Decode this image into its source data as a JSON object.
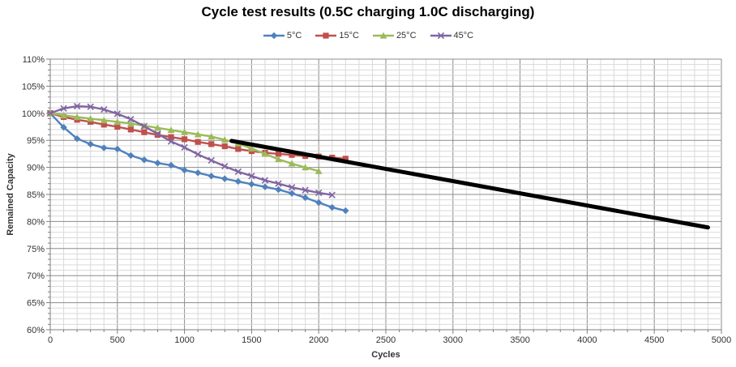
{
  "title": "Cycle test results (0.5C charging 1.0C discharging)",
  "chart_data": {
    "type": "line",
    "title": "Cycle test results (0.5C charging 1.0C discharging)",
    "xlabel": "Cycles",
    "ylabel": "Remained Capacity",
    "xlim": [
      0,
      5000
    ],
    "ylim": [
      60,
      110
    ],
    "x_ticks": [
      0,
      500,
      1000,
      1500,
      2000,
      2500,
      3000,
      3500,
      4000,
      4500,
      5000
    ],
    "y_ticks": [
      60,
      65,
      70,
      75,
      80,
      85,
      90,
      95,
      100,
      105,
      110
    ],
    "y_tick_suffix": "%",
    "x_minor_step": 100,
    "x_major_step": 500,
    "y_minor_step": 1,
    "y_major_step": 5,
    "grid": "major+minor",
    "legend_position": "top",
    "colors": {
      "minor_grid": "#d9d9d9",
      "major_grid": "#8c8c8c",
      "axis": "#7f7f7f",
      "tick_text": "#333333",
      "trend": "#000000"
    },
    "series": [
      {
        "name": "5°C",
        "color": "#4F81BD",
        "marker": "diamond",
        "x_start": 0,
        "x_step": 100,
        "values": [
          100,
          97.4,
          95.3,
          94.3,
          93.6,
          93.4,
          92.2,
          91.4,
          90.8,
          90.4,
          89.5,
          89.0,
          88.4,
          87.9,
          87.4,
          86.9,
          86.4,
          85.9,
          85.2,
          84.4,
          83.5,
          82.6,
          82.0
        ]
      },
      {
        "name": "15°C",
        "color": "#C0504D",
        "marker": "square",
        "x_start": 0,
        "x_step": 100,
        "values": [
          100,
          99.3,
          98.8,
          98.4,
          97.9,
          97.5,
          97.0,
          96.5,
          96.0,
          95.6,
          95.2,
          94.7,
          94.3,
          93.9,
          93.4,
          93.0,
          92.7,
          92.5,
          92.3,
          92.1,
          92.0,
          91.8,
          91.6
        ]
      },
      {
        "name": "25°C",
        "color": "#9BBB59",
        "marker": "triangle",
        "x_start": 0,
        "x_step": 100,
        "values": [
          100,
          99.6,
          99.3,
          99.0,
          98.7,
          98.4,
          98.1,
          97.7,
          97.3,
          96.9,
          96.5,
          96.1,
          95.7,
          95.1,
          94.4,
          93.5,
          92.5,
          91.5,
          90.7,
          90.0,
          89.3
        ]
      },
      {
        "name": "45°C",
        "color": "#8064A2",
        "marker": "xmark",
        "x_start": 0,
        "x_step": 100,
        "values": [
          100,
          100.9,
          101.3,
          101.2,
          100.7,
          99.9,
          98.9,
          97.6,
          96.2,
          94.8,
          93.7,
          92.4,
          91.3,
          90.2,
          89.2,
          88.4,
          87.6,
          87.0,
          86.3,
          85.8,
          85.3,
          84.9
        ]
      }
    ],
    "trend_line": {
      "points": [
        [
          1350,
          94.9
        ],
        [
          4900,
          78.9
        ]
      ],
      "width": 5
    }
  }
}
